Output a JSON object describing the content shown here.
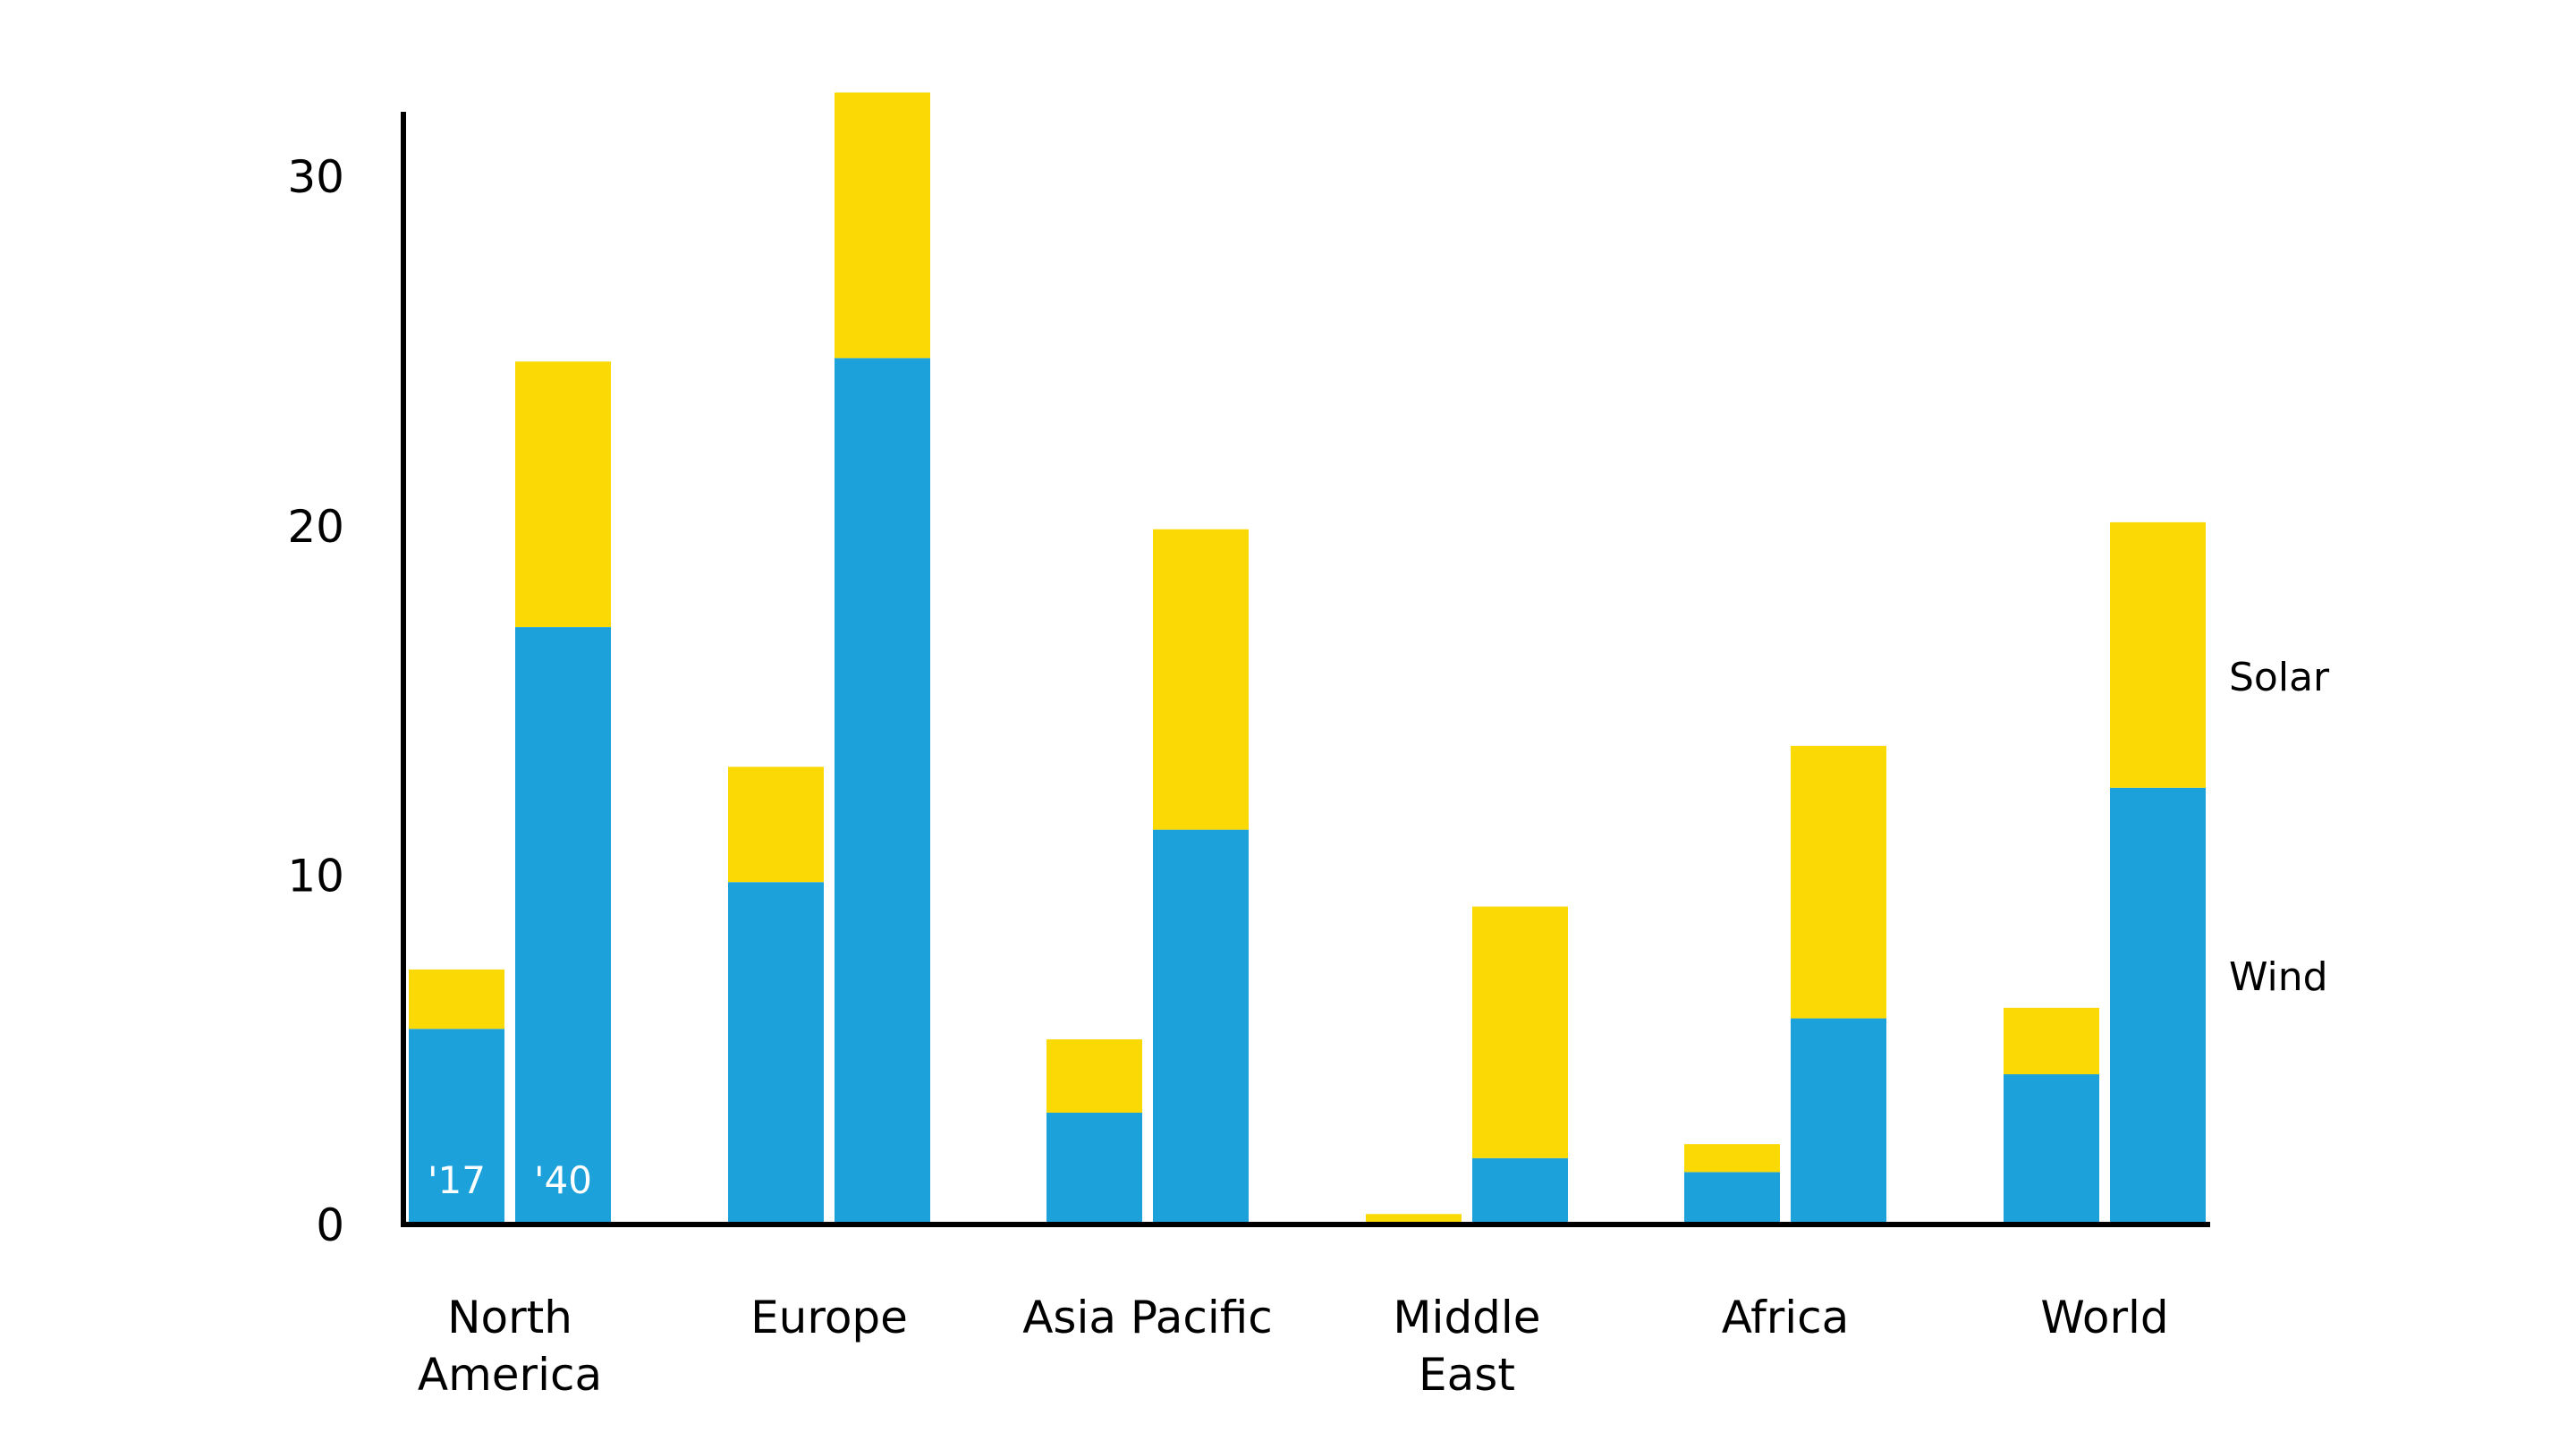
{
  "chart_data": {
    "type": "bar",
    "stacked": true,
    "title": "",
    "xlabel": "",
    "ylabel": "",
    "ylim": [
      0,
      32
    ],
    "yticks": [
      0,
      10,
      20,
      30
    ],
    "grid": false,
    "categories": [
      [
        "North",
        "America"
      ],
      [
        "Europe"
      ],
      [
        "Asia Pacific"
      ],
      [
        "Middle",
        "East"
      ],
      [
        "Africa"
      ],
      [
        "World"
      ]
    ],
    "bar_labels": [
      "'17",
      "'40"
    ],
    "series": [
      {
        "name": "Wind",
        "color": "#1CA1DB",
        "values": {
          "'17": [
            5.6,
            9.8,
            3.2,
            0.0,
            1.5,
            4.3
          ],
          "'40": [
            17.1,
            24.8,
            11.3,
            1.9,
            5.9,
            12.5
          ]
        }
      },
      {
        "name": "Solar",
        "color": "#FBD905",
        "values": {
          "'17": [
            1.7,
            3.3,
            2.1,
            0.3,
            0.8,
            1.9
          ],
          "'40": [
            7.6,
            7.6,
            8.6,
            7.2,
            7.8,
            7.6
          ]
        }
      }
    ],
    "legend": {
      "placement": "right",
      "entries": [
        "Solar",
        "Wind"
      ]
    }
  }
}
